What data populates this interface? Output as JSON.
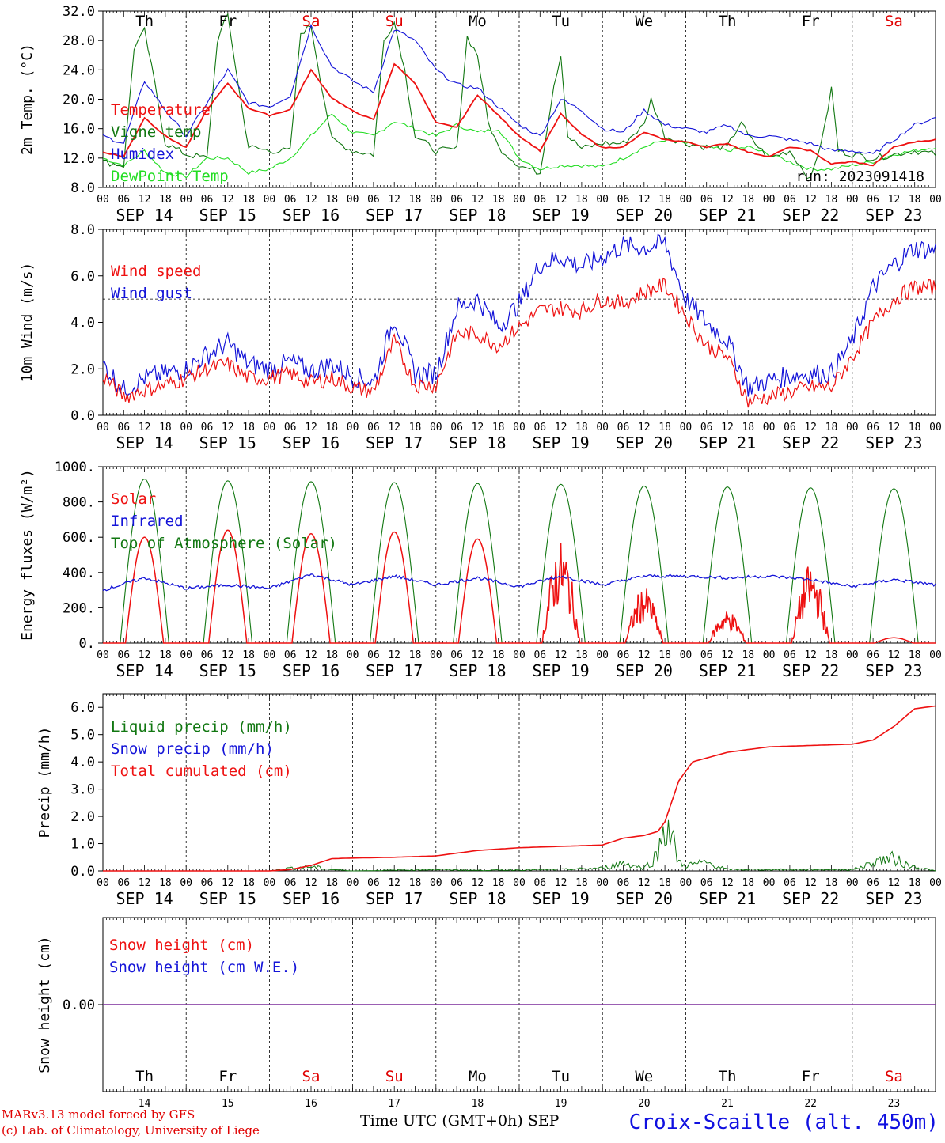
{
  "days": [
    "14",
    "15",
    "16",
    "17",
    "18",
    "19",
    "20",
    "21",
    "22",
    "23"
  ],
  "month": "SEP",
  "weekdays": [
    {
      "label": "Th",
      "color": "#000000"
    },
    {
      "label": "Fr",
      "color": "#000000"
    },
    {
      "label": "Sa",
      "color": "#e00000"
    },
    {
      "label": "Su",
      "color": "#e00000"
    },
    {
      "label": "Mo",
      "color": "#000000"
    },
    {
      "label": "Tu",
      "color": "#000000"
    },
    {
      "label": "We",
      "color": "#000000"
    },
    {
      "label": "Th",
      "color": "#000000"
    },
    {
      "label": "Fr",
      "color": "#000000"
    },
    {
      "label": "Sa",
      "color": "#e00000"
    }
  ],
  "hour_ticks": [
    "00",
    "06",
    "12",
    "18"
  ],
  "hour_end": "00",
  "run_label": "run: 2023091418",
  "footer": {
    "model": "MARv3.13 model forced by GFS",
    "lab": "(c) Lab. of Climatology, University of Liege",
    "time_axis": "Time UTC (GMT+0h) SEP",
    "station": "Croix-Scaille (alt. 450m)"
  },
  "colors": {
    "red": "#ee1111",
    "green": "#117711",
    "blue": "#1414d8",
    "lightgreen": "#22dd22",
    "purple": "#7a2a9a"
  },
  "chart_data": [
    {
      "type": "line",
      "id": "temp",
      "ylabel": "2m Temp. (°C)",
      "ylim": [
        8,
        32
      ],
      "yticks": [
        "8.0",
        "12.0",
        "16.0",
        "20.0",
        "24.0",
        "28.0",
        "32.0"
      ],
      "legend": [
        "Temperature",
        "Vigne temp",
        "Humidex",
        "DewPoint Temp"
      ],
      "x_unit": "hours since 2023-09-14 00 UTC",
      "series": [
        {
          "name": "Temperature",
          "color": "red",
          "x": [
            0,
            6,
            12,
            18,
            24,
            30,
            36,
            42,
            48,
            54,
            60,
            66,
            72,
            78,
            84,
            90,
            96,
            102,
            108,
            114,
            120,
            126,
            132,
            138,
            144,
            150,
            156,
            162,
            168,
            174,
            180,
            186,
            192,
            198,
            204,
            210,
            216,
            222,
            228,
            234,
            240
          ],
          "values": [
            12.8,
            12.2,
            17.5,
            15,
            13.4,
            18.6,
            22.2,
            18.8,
            17.8,
            18.6,
            24,
            20.2,
            18.4,
            17.2,
            24.8,
            22.2,
            16.8,
            16.2,
            20.6,
            17.8,
            15,
            13,
            18,
            15.2,
            13.4,
            13.5,
            15.5,
            14.5,
            14.2,
            13.5,
            14,
            12.8,
            12.2,
            13.5,
            13,
            11.2,
            11.5,
            11,
            13.5,
            14.2,
            14.5
          ]
        },
        {
          "name": "Vigne temp",
          "color": "green",
          "x": [
            0,
            6,
            9,
            12,
            15,
            18,
            24,
            30,
            33,
            36,
            39,
            42,
            48,
            54,
            57,
            60,
            63,
            66,
            72,
            78,
            81,
            84,
            87,
            90,
            96,
            102,
            105,
            108,
            111,
            114,
            120,
            126,
            130,
            132,
            134,
            138,
            144,
            150,
            156,
            158,
            162,
            168,
            174,
            180,
            184,
            186,
            190,
            192,
            198,
            204,
            208,
            210,
            212,
            216,
            222,
            228,
            234,
            240
          ],
          "values": [
            11.5,
            11,
            27,
            29.3,
            22,
            14,
            12.5,
            12,
            28,
            31.5,
            22,
            13.5,
            13,
            13,
            29,
            30,
            22,
            14.5,
            13,
            12.5,
            28,
            30.5,
            24,
            15,
            13,
            13.2,
            28.5,
            26,
            17,
            13.5,
            11,
            10,
            22,
            26,
            15,
            13.3,
            14,
            14,
            16.5,
            20,
            15,
            14,
            13.5,
            13.5,
            17,
            15,
            13,
            12,
            13,
            9,
            16,
            21.5,
            13,
            12.5,
            12,
            12.5,
            13,
            12.5
          ]
        },
        {
          "name": "Humidex",
          "color": "blue",
          "x": [
            0,
            6,
            12,
            18,
            24,
            30,
            36,
            42,
            48,
            54,
            60,
            66,
            72,
            78,
            84,
            90,
            96,
            102,
            108,
            114,
            120,
            126,
            132,
            138,
            144,
            150,
            156,
            162,
            168,
            174,
            180,
            186,
            192,
            198,
            204,
            210,
            216,
            222,
            228,
            234,
            240
          ],
          "values": [
            15,
            14,
            22.5,
            18.5,
            15,
            19.5,
            24,
            19.5,
            19,
            20.5,
            30,
            24.5,
            22.5,
            21,
            29.5,
            28,
            24,
            22,
            21.5,
            19,
            16.5,
            15,
            20,
            18.5,
            16,
            15.5,
            18.5,
            16.5,
            16,
            15.5,
            16.5,
            15,
            15,
            14.5,
            14,
            13,
            13,
            12.5,
            14.5,
            16.5,
            17.5
          ]
        },
        {
          "name": "DewPoint Temp",
          "color": "lightgreen",
          "x": [
            0,
            6,
            12,
            18,
            24,
            30,
            36,
            42,
            48,
            54,
            60,
            66,
            72,
            78,
            84,
            90,
            96,
            102,
            108,
            114,
            120,
            126,
            132,
            138,
            144,
            150,
            156,
            162,
            168,
            174,
            180,
            186,
            192,
            198,
            204,
            210,
            216,
            222,
            228,
            234,
            240
          ],
          "values": [
            12,
            11,
            13,
            10,
            9.5,
            12,
            12,
            10,
            10.5,
            12,
            15,
            18,
            15.5,
            15,
            17,
            16,
            15,
            16.5,
            15.5,
            16,
            12,
            10.5,
            11,
            11,
            10.8,
            12,
            13.5,
            14.5,
            14,
            13.5,
            13,
            13.5,
            12.5,
            11.5,
            10.5,
            10.5,
            11,
            11.5,
            12.5,
            13,
            13.5
          ]
        }
      ]
    },
    {
      "type": "line",
      "id": "wind",
      "ylabel": "10m Wind (m/s)",
      "ylim": [
        0,
        8
      ],
      "yticks": [
        "0.0",
        "2.0",
        "4.0",
        "6.0",
        "8.0"
      ],
      "legend": [
        "Wind speed",
        "Wind gust"
      ],
      "x_unit": "hours since 2023-09-14 00 UTC",
      "series": [
        {
          "name": "Wind speed",
          "color": "red",
          "x": [
            0,
            6,
            12,
            18,
            24,
            30,
            36,
            42,
            48,
            54,
            60,
            66,
            72,
            78,
            84,
            90,
            96,
            102,
            108,
            114,
            120,
            126,
            132,
            138,
            144,
            150,
            156,
            162,
            168,
            174,
            180,
            186,
            192,
            198,
            204,
            210,
            216,
            222,
            228,
            234,
            240
          ],
          "values": [
            1.7,
            0.8,
            1.1,
            1.3,
            1.6,
            2.0,
            2.2,
            1.6,
            1.6,
            1.8,
            1.4,
            1.6,
            1.2,
            1.0,
            3.2,
            1.3,
            1.3,
            3.5,
            3.5,
            3.0,
            3.8,
            4.5,
            4.6,
            4.5,
            5.0,
            4.8,
            5.3,
            5.6,
            4.3,
            3.0,
            2.5,
            0.6,
            0.8,
            1.0,
            1.2,
            1.2,
            2.5,
            4.0,
            5.0,
            5.5,
            5.5
          ]
        },
        {
          "name": "Wind gust",
          "color": "blue",
          "x": [
            0,
            6,
            12,
            18,
            24,
            30,
            36,
            42,
            48,
            54,
            60,
            66,
            72,
            78,
            84,
            90,
            96,
            102,
            108,
            114,
            120,
            126,
            132,
            138,
            144,
            150,
            156,
            162,
            168,
            174,
            180,
            186,
            192,
            198,
            204,
            210,
            216,
            222,
            228,
            234,
            240
          ],
          "values": [
            2.2,
            1.1,
            1.6,
            1.8,
            2.0,
            2.6,
            3.1,
            2.2,
            2.0,
            2.3,
            1.9,
            2.2,
            1.7,
            1.4,
            4.2,
            1.8,
            1.8,
            4.6,
            5.0,
            3.8,
            4.8,
            6.5,
            6.8,
            6.4,
            6.8,
            7.3,
            7.2,
            7.4,
            5.0,
            4.0,
            3.2,
            1.2,
            1.5,
            1.7,
            1.8,
            1.8,
            3.2,
            5.5,
            6.5,
            7.2,
            7.1
          ]
        }
      ]
    },
    {
      "type": "line",
      "id": "energy",
      "ylabel": "Energy fluxes (W/m²)",
      "ylim": [
        0,
        1000
      ],
      "yticks": [
        "0.",
        "200.",
        "400.",
        "600.",
        "800.",
        "1000."
      ],
      "legend": [
        "Solar",
        "Infrared",
        "Top of Atmosphere (Solar)"
      ],
      "x_unit": "hours since 2023-09-14 00 UTC",
      "toa_peak": [
        930,
        920,
        915,
        910,
        905,
        900,
        890,
        885,
        880,
        875
      ],
      "solar_peak": [
        600,
        640,
        620,
        630,
        590,
        580,
        320,
        190,
        450,
        30
      ],
      "series": [
        {
          "name": "Infrared",
          "color": "blue",
          "x": [
            0,
            12,
            24,
            36,
            48,
            60,
            72,
            84,
            96,
            108,
            120,
            132,
            144,
            156,
            168,
            180,
            192,
            204,
            216,
            228,
            240
          ],
          "values": [
            300,
            370,
            310,
            330,
            310,
            390,
            330,
            380,
            330,
            370,
            320,
            380,
            330,
            380,
            380,
            370,
            380,
            360,
            320,
            360,
            330
          ]
        }
      ]
    },
    {
      "type": "line",
      "id": "precip",
      "ylabel": "Precip (mm/h)",
      "ylim": [
        0,
        6.5
      ],
      "yticks": [
        "0.0",
        "1.0",
        "2.0",
        "3.0",
        "4.0",
        "5.0",
        "6.0"
      ],
      "legend": [
        "Liquid precip (mm/h)",
        "Snow precip (mm/h)",
        "Total cumulated (cm)"
      ],
      "x_unit": "hours since 2023-09-14 00 UTC",
      "series": [
        {
          "name": "Total cumulated (cm)",
          "color": "red",
          "x": [
            0,
            48,
            54,
            60,
            66,
            72,
            84,
            96,
            108,
            120,
            132,
            144,
            150,
            156,
            160,
            162,
            166,
            170,
            180,
            192,
            204,
            216,
            222,
            228,
            234,
            240
          ],
          "values": [
            0,
            0,
            0.05,
            0.2,
            0.45,
            0.47,
            0.5,
            0.55,
            0.75,
            0.85,
            0.9,
            0.95,
            1.2,
            1.3,
            1.45,
            1.8,
            3.3,
            4.0,
            4.35,
            4.55,
            4.6,
            4.65,
            4.8,
            5.3,
            5.95,
            6.05
          ]
        },
        {
          "name": "Liquid precip (mm/h)",
          "color": "green",
          "x": [
            0,
            48,
            54,
            60,
            66,
            72,
            96,
            108,
            132,
            144,
            150,
            156,
            160,
            162,
            164,
            166,
            168,
            174,
            180,
            192,
            216,
            220,
            224,
            228,
            232,
            240
          ],
          "values": [
            0,
            0,
            0.1,
            0.15,
            0.05,
            0,
            0.05,
            0.02,
            0.05,
            0.1,
            0.3,
            0.1,
            0.6,
            1.9,
            1.2,
            0.3,
            0.2,
            0.3,
            0.05,
            0.05,
            0.05,
            0.2,
            0.4,
            0.45,
            0.2,
            0
          ]
        }
      ]
    },
    {
      "type": "line",
      "id": "snow",
      "ylabel": "Snow height (cm)",
      "ylim": [
        -1,
        1
      ],
      "yticks": [
        "0.00"
      ],
      "legend": [
        "Snow height (cm)",
        "Snow height (cm W.E.)"
      ],
      "x_unit": "hours since 2023-09-14 00 UTC",
      "series": [
        {
          "name": "Snow height (cm)",
          "color": "purple",
          "x": [
            0,
            240
          ],
          "values": [
            0,
            0
          ]
        }
      ]
    }
  ]
}
